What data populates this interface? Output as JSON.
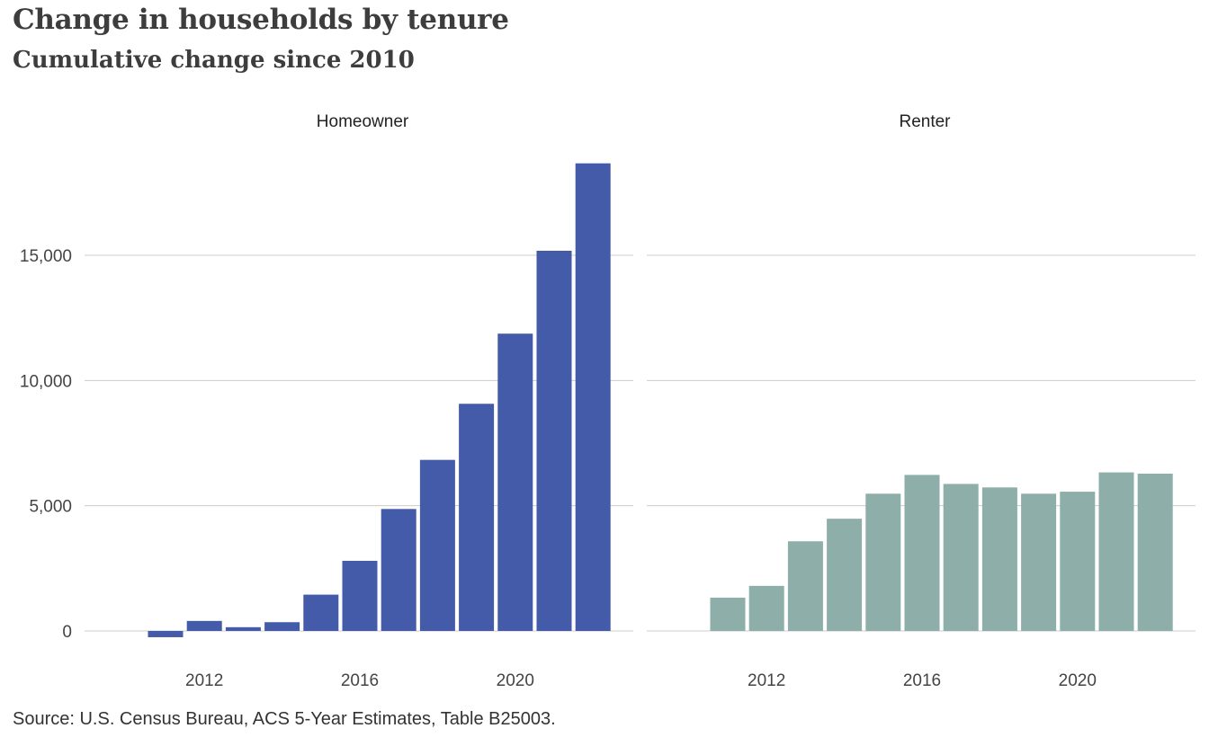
{
  "title": "Change in households by tenure",
  "subtitle": "Cumulative change since 2010",
  "caption": "Source: U.S. Census Bureau, ACS 5-Year Estimates, Table B25003.",
  "chart_data": {
    "type": "bar",
    "x": [
      2011,
      2012,
      2013,
      2014,
      2015,
      2016,
      2017,
      2018,
      2019,
      2020,
      2021,
      2022
    ],
    "x_ticks": [
      "2012",
      "2016",
      "2020"
    ],
    "y_ticks": [
      "0",
      "5,000",
      "10,000",
      "15,000"
    ],
    "y_tick_values": [
      0,
      5000,
      10000,
      15000
    ],
    "ylim": [
      -1000,
      19500
    ],
    "grid": true,
    "facets": [
      {
        "name": "Homeowner",
        "color": "#445ba9",
        "values": [
          -250,
          400,
          150,
          350,
          1450,
          2800,
          4870,
          6830,
          9070,
          11870,
          15180,
          18670
        ]
      },
      {
        "name": "Renter",
        "color": "#8daea9",
        "values": [
          1330,
          1800,
          3580,
          4480,
          5480,
          6230,
          5870,
          5730,
          5480,
          5560,
          6330,
          6280
        ]
      }
    ]
  }
}
